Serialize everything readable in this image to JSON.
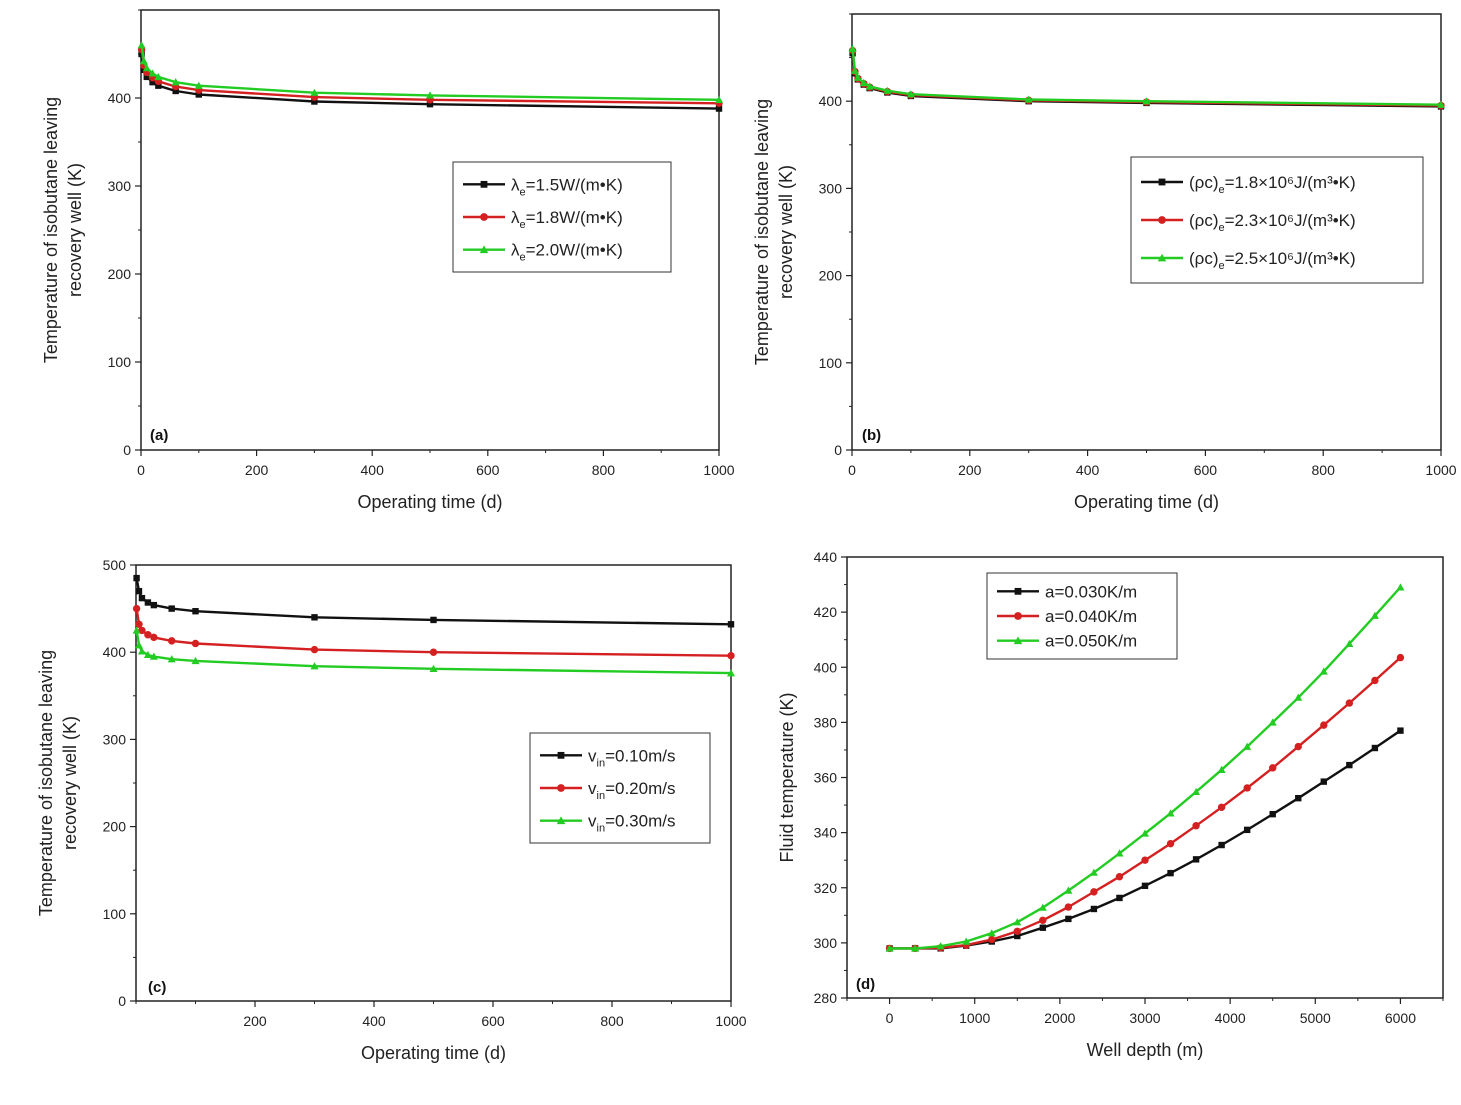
{
  "chart_data": [
    {
      "type": "line",
      "panel_label": "(a)",
      "title": "",
      "xlabel": "Operating time (d)",
      "ylabel_lines": [
        "Temperature of isobutane leaving",
        "recovery well (K)"
      ],
      "xlim": [
        0,
        1000
      ],
      "ylim": [
        0,
        500
      ],
      "xticks": [
        0,
        200,
        400,
        600,
        800,
        1000
      ],
      "yticks": [
        0,
        100,
        200,
        300,
        400
      ],
      "grid": false,
      "legend_position": "right",
      "x": [
        1,
        5,
        10,
        20,
        30,
        60,
        100,
        300,
        500,
        1000
      ],
      "series": [
        {
          "name": "λe=1.5W/(m•K)",
          "label_main": "λ",
          "label_sub": "e",
          "label_rest": "=1.5W/(m•K)",
          "color": "#111111",
          "marker": "square",
          "values": [
            450,
            432,
            424,
            418,
            414,
            408,
            404,
            396,
            393,
            388
          ]
        },
        {
          "name": "λe=1.8W/(m•K)",
          "label_main": "λ",
          "label_sub": "e",
          "label_rest": "=1.8W/(m•K)",
          "color": "#d42020",
          "marker": "circle",
          "values": [
            455,
            437,
            429,
            423,
            419,
            413,
            409,
            401,
            398,
            394
          ]
        },
        {
          "name": "λe=2.0W/(m•K)",
          "label_main": "λ",
          "label_sub": "e",
          "label_rest": "=2.0W/(m•K)",
          "color": "#22cc22",
          "marker": "triangle",
          "values": [
            460,
            442,
            434,
            428,
            424,
            418,
            414,
            406,
            403,
            398
          ]
        }
      ]
    },
    {
      "type": "line",
      "panel_label": "(b)",
      "title": "",
      "xlabel": "Operating time (d)",
      "ylabel_lines": [
        "Temperature of isobutane leaving",
        "recovery well (K)"
      ],
      "xlim": [
        0,
        1000
      ],
      "ylim": [
        0,
        500
      ],
      "xticks": [
        0,
        200,
        400,
        600,
        800,
        1000
      ],
      "yticks": [
        0,
        100,
        200,
        300,
        400
      ],
      "grid": false,
      "legend_position": "right",
      "x": [
        1,
        5,
        10,
        20,
        30,
        60,
        100,
        300,
        500,
        1000
      ],
      "series": [
        {
          "name": "(ρc)e=1.8×10⁶J/(m³•K)",
          "label_main": "(ρc)",
          "label_sub": "e",
          "label_rest": "=1.8×10⁶J/(m³•K)",
          "color": "#111111",
          "marker": "square",
          "values": [
            455,
            432,
            425,
            419,
            415,
            410,
            406,
            400,
            398,
            394
          ]
        },
        {
          "name": "(ρc)e=2.3×10⁶J/(m³•K)",
          "label_main": "(ρc)",
          "label_sub": "e",
          "label_rest": "=2.3×10⁶J/(m³•K)",
          "color": "#d42020",
          "marker": "circle",
          "values": [
            458,
            434,
            426,
            420,
            416,
            411,
            407,
            401,
            399,
            395
          ]
        },
        {
          "name": "(ρc)e=2.5×10⁶J/(m³•K)",
          "label_main": "(ρc)",
          "label_sub": "e",
          "label_rest": "=2.5×10⁶J/(m³•K)",
          "color": "#22cc22",
          "marker": "triangle",
          "values": [
            460,
            435,
            427,
            421,
            417,
            412,
            408,
            402,
            400,
            396
          ]
        }
      ]
    },
    {
      "type": "line",
      "panel_label": "(c)",
      "title": "",
      "xlabel": "Operating time (d)",
      "ylabel_lines": [
        "Temperature of isobutane leaving",
        "recovery well (K)"
      ],
      "xlim": [
        0,
        1000
      ],
      "ylim": [
        0,
        500
      ],
      "xticks": [
        200,
        400,
        600,
        800,
        1000
      ],
      "yticks": [
        0,
        100,
        200,
        300,
        400,
        500
      ],
      "grid": false,
      "legend_position": "right",
      "x": [
        1,
        5,
        10,
        20,
        30,
        60,
        100,
        300,
        500,
        1000
      ],
      "series": [
        {
          "name": "vin=0.10m/s",
          "label_main": "v",
          "label_sub": "in",
          "label_rest": "=0.10m/s",
          "color": "#111111",
          "marker": "square",
          "values": [
            485,
            470,
            462,
            457,
            454,
            450,
            447,
            440,
            437,
            432
          ]
        },
        {
          "name": "vin=0.20m/s",
          "label_main": "v",
          "label_sub": "in",
          "label_rest": "=0.20m/s",
          "color": "#d42020",
          "marker": "circle",
          "values": [
            450,
            432,
            425,
            420,
            417,
            413,
            410,
            403,
            400,
            396
          ]
        },
        {
          "name": "vin=0.30m/s",
          "label_main": "v",
          "label_sub": "in",
          "label_rest": "=0.30m/s",
          "color": "#22cc22",
          "marker": "triangle",
          "values": [
            425,
            408,
            401,
            397,
            395,
            392,
            390,
            384,
            381,
            376
          ]
        }
      ]
    },
    {
      "type": "line",
      "panel_label": "(d)",
      "title": "",
      "xlabel": "Well depth (m)",
      "ylabel_lines": [
        "Fluid temperature (K)"
      ],
      "xlim": [
        -500,
        6500
      ],
      "ylim": [
        280,
        440
      ],
      "xticks": [
        0,
        1000,
        2000,
        3000,
        4000,
        5000,
        6000
      ],
      "yticks": [
        280,
        300,
        320,
        340,
        360,
        380,
        400,
        420,
        440
      ],
      "grid": false,
      "legend_position": "top-left",
      "x": [
        0,
        300,
        600,
        900,
        1200,
        1500,
        1800,
        2100,
        2400,
        2700,
        3000,
        3300,
        3600,
        3900,
        4200,
        4500,
        4800,
        5100,
        5400,
        5700,
        6000
      ],
      "series": [
        {
          "name": "a=0.030K/m",
          "label_main": "a=0.030K/m",
          "label_sub": "",
          "label_rest": "",
          "color": "#111111",
          "marker": "square",
          "values": [
            298,
            298,
            298,
            299,
            300.5,
            302.5,
            305.5,
            308.7,
            312.3,
            316.3,
            320.7,
            325.3,
            330.3,
            335.5,
            341,
            346.7,
            352.5,
            358.5,
            364.5,
            370.7,
            377
          ]
        },
        {
          "name": "a=0.040K/m",
          "label_main": "a=0.040K/m",
          "label_sub": "",
          "label_rest": "",
          "color": "#d42020",
          "marker": "circle",
          "values": [
            298,
            298,
            298.2,
            299.2,
            301.2,
            304.2,
            308.2,
            313,
            318.5,
            324,
            330,
            336,
            342.5,
            349.2,
            356.2,
            363.5,
            371.2,
            379,
            387,
            395.2,
            403.5
          ]
        },
        {
          "name": "a=0.050K/m",
          "label_main": "a=0.050K/m",
          "label_sub": "",
          "label_rest": "",
          "color": "#22cc22",
          "marker": "triangle",
          "values": [
            298,
            298,
            298.8,
            300.5,
            303.5,
            307.5,
            312.8,
            319,
            325.5,
            332.5,
            339.7,
            347,
            354.8,
            362.8,
            371.2,
            380,
            389,
            398.5,
            408.5,
            418.7,
            429
          ]
        }
      ]
    }
  ]
}
